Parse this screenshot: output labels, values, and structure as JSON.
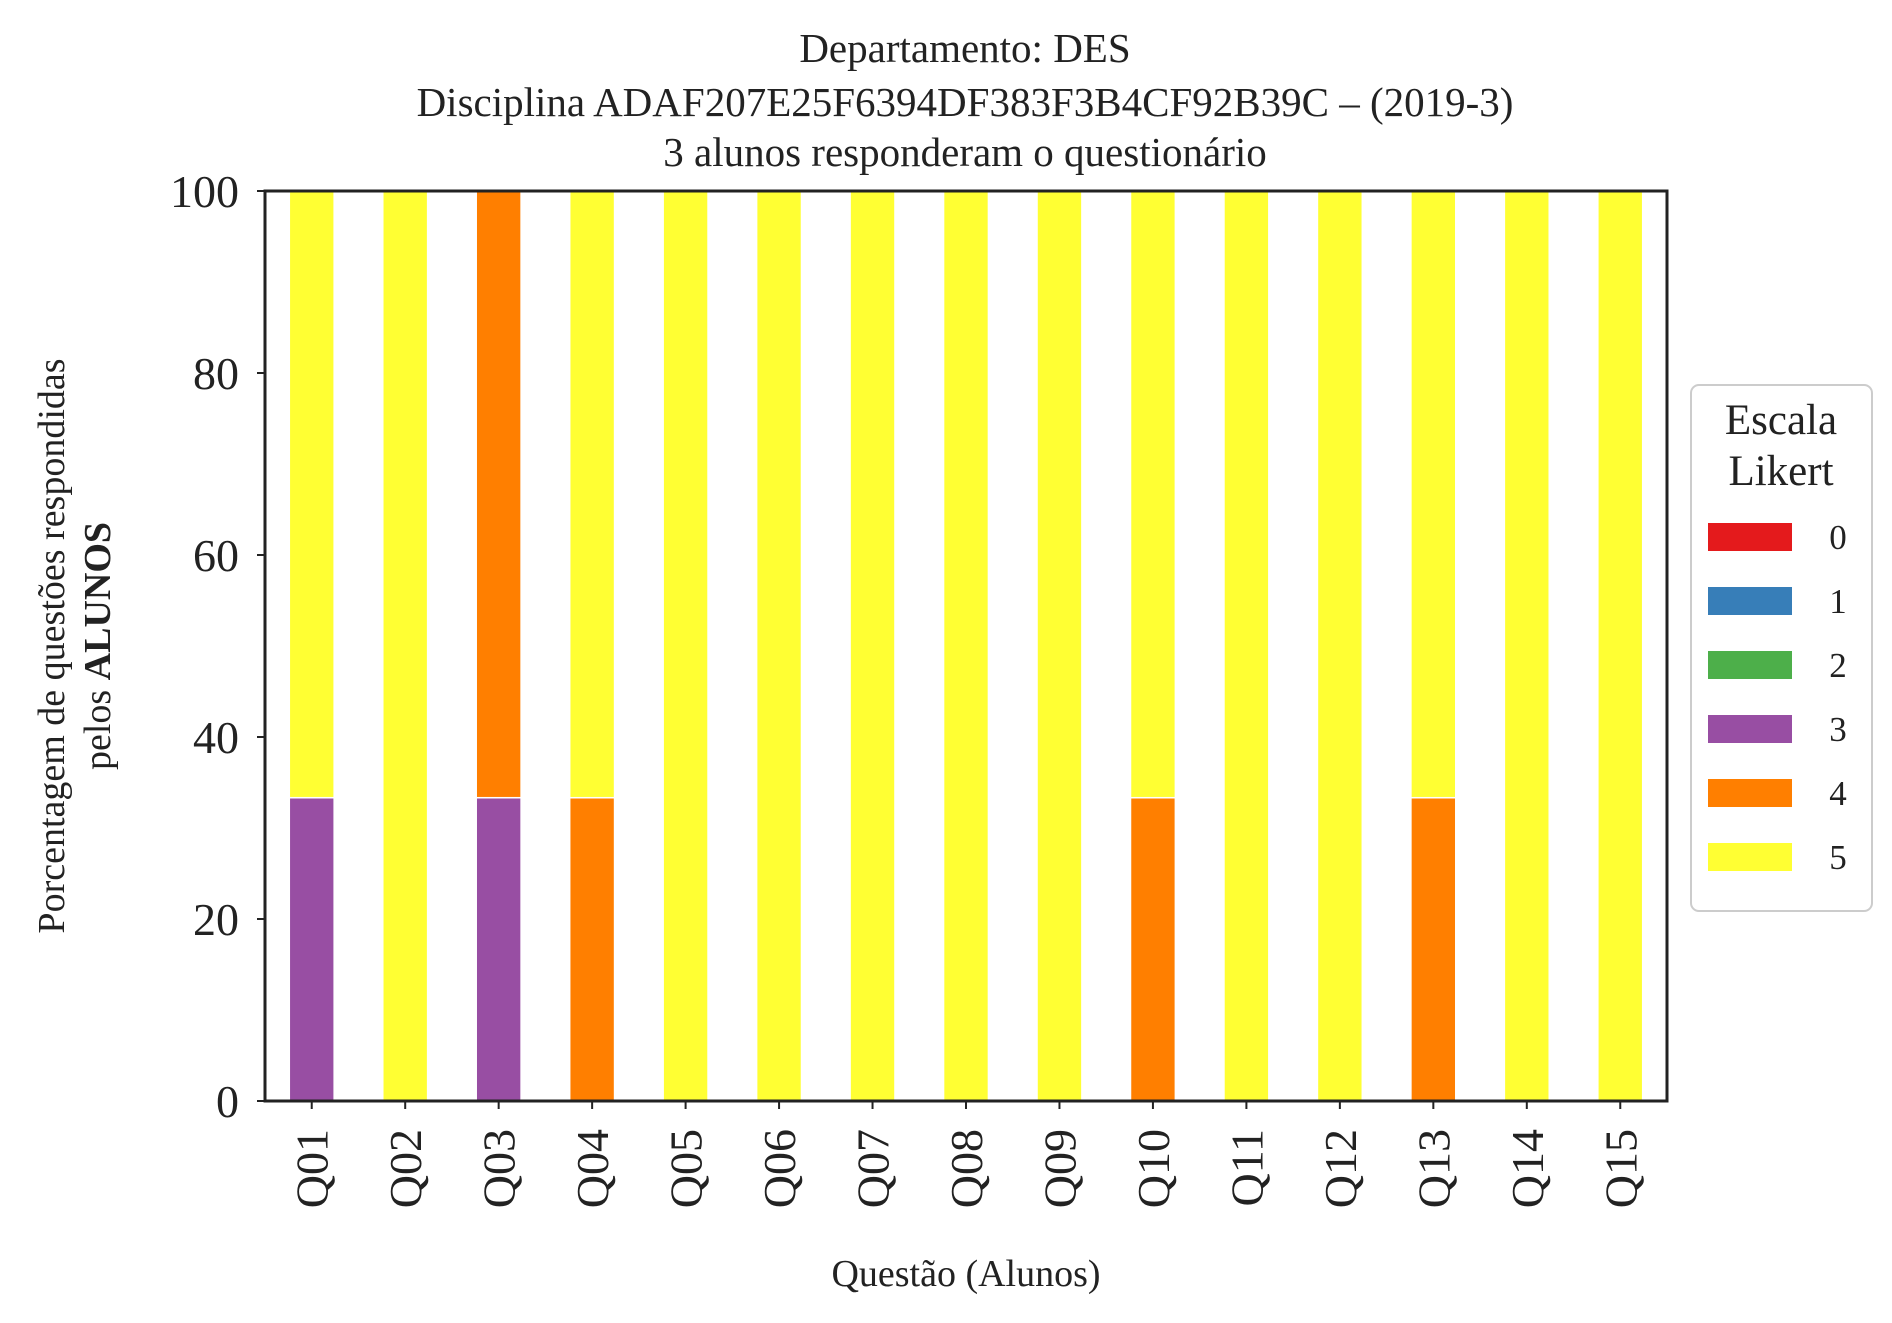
{
  "chart_data": {
    "type": "bar",
    "stacked": true,
    "title_lines": [
      "Departamento: DES",
      "Disciplina ADAF207E25F6394DF383F3B4CF92B39C – (2019-3)",
      "3 alunos responderam o questionário"
    ],
    "xlabel": "Questão (Alunos)",
    "ylabel_line1": "Porcentagem de questões respondidas",
    "ylabel_line2_prefix": "pelos ",
    "ylabel_line2_bold": "ALUNOS",
    "ylim": [
      0,
      100
    ],
    "yticks": [
      "0",
      "20",
      "40",
      "60",
      "80",
      "100"
    ],
    "grid": false,
    "categories": [
      "Q01",
      "Q02",
      "Q03",
      "Q04",
      "Q05",
      "Q06",
      "Q07",
      "Q08",
      "Q09",
      "Q10",
      "Q11",
      "Q12",
      "Q13",
      "Q14",
      "Q15"
    ],
    "legend": {
      "title_lines": [
        "Escala",
        "Likert"
      ],
      "placement": "center-right, outside plot"
    },
    "series": [
      {
        "name": "0",
        "color": "#e41a1c",
        "values": [
          0,
          0,
          0,
          0,
          0,
          0,
          0,
          0,
          0,
          0,
          0,
          0,
          0,
          0,
          0
        ]
      },
      {
        "name": "1",
        "color": "#377eb8",
        "values": [
          0,
          0,
          0,
          0,
          0,
          0,
          0,
          0,
          0,
          0,
          0,
          0,
          0,
          0,
          0
        ]
      },
      {
        "name": "2",
        "color": "#4daf4a",
        "values": [
          0,
          0,
          0,
          0,
          0,
          0,
          0,
          0,
          0,
          0,
          0,
          0,
          0,
          0,
          0
        ]
      },
      {
        "name": "3",
        "color": "#984ea3",
        "values": [
          33.33,
          0,
          33.33,
          0,
          0,
          0,
          0,
          0,
          0,
          0,
          0,
          0,
          0,
          0,
          0
        ]
      },
      {
        "name": "4",
        "color": "#ff7f00",
        "values": [
          0,
          0,
          66.67,
          33.33,
          0,
          0,
          0,
          0,
          0,
          33.33,
          0,
          0,
          33.33,
          0,
          0
        ]
      },
      {
        "name": "5",
        "color": "#ffff33",
        "values": [
          66.67,
          100,
          0,
          66.67,
          100,
          100,
          100,
          100,
          100,
          66.67,
          100,
          100,
          66.67,
          100,
          100
        ]
      }
    ]
  }
}
